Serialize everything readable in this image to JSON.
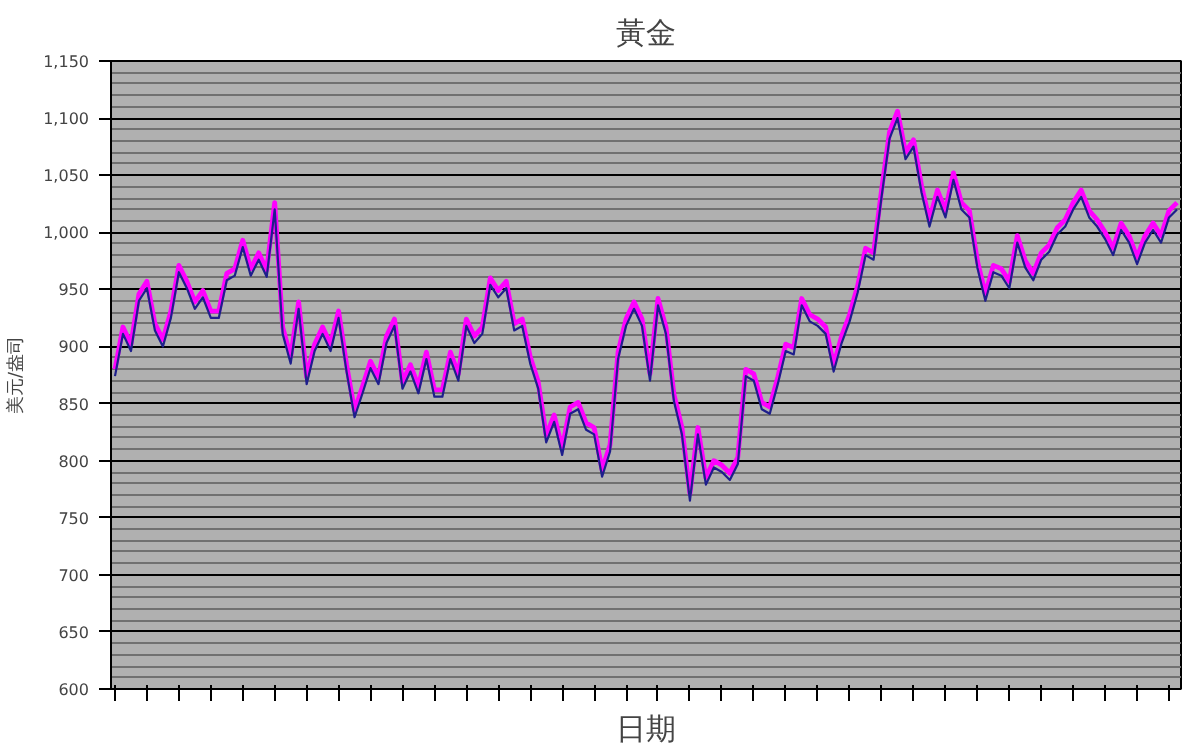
{
  "chart_data": {
    "type": "line",
    "title": "黃金",
    "xlabel": "日期",
    "ylabel": "美元/盎司",
    "categories": [
      null,
      null,
      null,
      null,
      null,
      null,
      null,
      null,
      null,
      null,
      null,
      null,
      null,
      null,
      null,
      null,
      null,
      null,
      null,
      null,
      null,
      null,
      null,
      null,
      null,
      null,
      null,
      null,
      null,
      null,
      null,
      null,
      null,
      null,
      null,
      null,
      null,
      null,
      null,
      null,
      null,
      null,
      null,
      null,
      null,
      null,
      null,
      null,
      null,
      null,
      null,
      null,
      null,
      null,
      null,
      null,
      null,
      null,
      null,
      null,
      null,
      null,
      null,
      null,
      null,
      null,
      null,
      null,
      null,
      null,
      null,
      null,
      null,
      null,
      null,
      null,
      null,
      null,
      null,
      null,
      null,
      null,
      null,
      null,
      null,
      null,
      null,
      null,
      null,
      null,
      null,
      null,
      null,
      null,
      null,
      null,
      null,
      null,
      null,
      null,
      null,
      null,
      null,
      null,
      null,
      null,
      null,
      null,
      null,
      null,
      null,
      null,
      null,
      null,
      null,
      null,
      null,
      null,
      null,
      null,
      null,
      null,
      null,
      null,
      null,
      null,
      null,
      null,
      null,
      null,
      null,
      null,
      null,
      null
    ],
    "series": [
      {
        "color": "#ff00ff",
        "values": [
          880,
          917,
          902,
          946,
          957,
          920,
          906,
          931,
          971,
          957,
          939,
          949,
          931,
          931,
          964,
          968,
          993,
          968,
          982,
          967,
          1026,
          917,
          891,
          939,
          873,
          902,
          917,
          902,
          931,
          884,
          844,
          865,
          887,
          873,
          909,
          924,
          869,
          884,
          865,
          895,
          862,
          862,
          895,
          876,
          924,
          909,
          917,
          960,
          949,
          957,
          920,
          924,
          891,
          869,
          822,
          840,
          811,
          847,
          851,
          833,
          829,
          792,
          814,
          895,
          924,
          939,
          924,
          876,
          942,
          917,
          858,
          829,
          771,
          829,
          785,
          800,
          796,
          789,
          803,
          880,
          876,
          851,
          847,
          873,
          902,
          899,
          942,
          928,
          924,
          917,
          884,
          909,
          928,
          953,
          986,
          982,
          1037,
          1088,
          1106,
          1070,
          1081,
          1041,
          1011,
          1037,
          1019,
          1052,
          1026,
          1019,
          975,
          946,
          971,
          968,
          957,
          997,
          975,
          964,
          982,
          989,
          1004,
          1011,
          1026,
          1037,
          1019,
          1011,
          1000,
          986,
          1008,
          997,
          978,
          997,
          1008,
          997,
          1019,
          1026
        ]
      },
      {
        "color": "#1e1e8c",
        "values": [
          874,
          911,
          896,
          940,
          951,
          914,
          900,
          925,
          965,
          951,
          933,
          943,
          925,
          925,
          958,
          962,
          987,
          962,
          976,
          961,
          1020,
          911,
          885,
          933,
          867,
          896,
          911,
          896,
          925,
          878,
          838,
          859,
          881,
          867,
          903,
          918,
          863,
          878,
          859,
          889,
          856,
          856,
          889,
          870,
          918,
          903,
          911,
          954,
          943,
          951,
          914,
          918,
          885,
          863,
          816,
          834,
          805,
          841,
          845,
          827,
          823,
          786,
          808,
          889,
          918,
          933,
          918,
          870,
          936,
          911,
          852,
          823,
          765,
          823,
          779,
          794,
          790,
          783,
          797,
          874,
          870,
          845,
          841,
          867,
          896,
          893,
          936,
          922,
          918,
          911,
          878,
          903,
          922,
          947,
          980,
          976,
          1031,
          1082,
          1100,
          1064,
          1075,
          1035,
          1005,
          1031,
          1013,
          1046,
          1020,
          1013,
          969,
          940,
          965,
          962,
          951,
          991,
          969,
          958,
          976,
          983,
          998,
          1005,
          1020,
          1031,
          1013,
          1005,
          994,
          980,
          1002,
          991,
          972,
          991,
          1002,
          991,
          1013,
          1020
        ]
      }
    ],
    "ylim": [
      600,
      1150
    ],
    "yticks": [
      {
        "value": 600,
        "label": "600"
      },
      {
        "value": 650,
        "label": "650"
      },
      {
        "value": 700,
        "label": "700"
      },
      {
        "value": 750,
        "label": "750"
      },
      {
        "value": 800,
        "label": "800"
      },
      {
        "value": 850,
        "label": "850"
      },
      {
        "value": 900,
        "label": "900"
      },
      {
        "value": 950,
        "label": "950"
      },
      {
        "value": 1000,
        "label": "1,000"
      },
      {
        "value": 1050,
        "label": "1,050"
      },
      {
        "value": 1100,
        "label": "1,100"
      },
      {
        "value": 1150,
        "label": "1,150"
      }
    ],
    "grid": "y",
    "tick_labels": "y",
    "line_style": "solid",
    "marker": "none"
  }
}
